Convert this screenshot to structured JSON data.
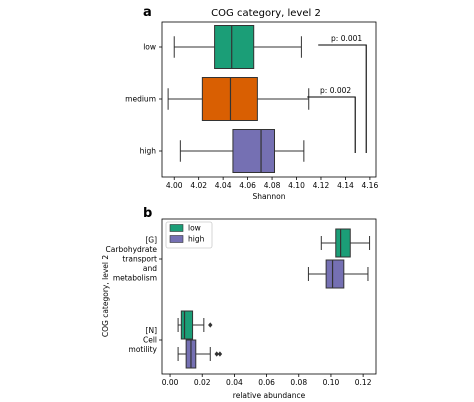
{
  "chart_data": [
    {
      "panel": "a",
      "type": "box",
      "orientation": "horizontal",
      "title": "COG category, level 2",
      "xlabel": "Shannon",
      "ylabel": "",
      "xlim": [
        3.99,
        4.165
      ],
      "xticks": [
        "4.00",
        "4.02",
        "4.04",
        "4.06",
        "4.08",
        "4.10",
        "4.12",
        "4.14",
        "4.16"
      ],
      "categories": [
        "low",
        "medium",
        "high"
      ],
      "boxes": [
        {
          "category": "low",
          "color": "#1b9e77",
          "whisker_low": 4.0,
          "q1": 4.033,
          "median": 4.047,
          "q3": 4.065,
          "whisker_high": 4.104
        },
        {
          "category": "medium",
          "color": "#d95f02",
          "whisker_low": 3.995,
          "q1": 4.023,
          "median": 4.046,
          "q3": 4.068,
          "whisker_high": 4.11
        },
        {
          "category": "high",
          "color": "#7570b3",
          "whisker_low": 4.005,
          "q1": 4.048,
          "median": 4.071,
          "q3": 4.082,
          "whisker_high": 4.106
        }
      ],
      "annotations": [
        {
          "text": "p: 0.001",
          "from": "low",
          "to": "high",
          "bracket_x": 4.157
        },
        {
          "text": "p: 0.002",
          "from": "medium",
          "to": "high",
          "bracket_x": 4.148
        }
      ]
    },
    {
      "panel": "b",
      "type": "box",
      "orientation": "horizontal",
      "title": "",
      "xlabel": "relative abundance",
      "ylabel": "COG category, level 2",
      "xlim": [
        -0.005,
        0.128
      ],
      "xticks": [
        "0.00",
        "0.02",
        "0.04",
        "0.06",
        "0.08",
        "0.10",
        "0.12"
      ],
      "categories": [
        {
          "key": "G",
          "lines": [
            "[G]",
            "Carbohydrate",
            "transport",
            "and",
            "metabolism"
          ]
        },
        {
          "key": "N",
          "lines": [
            "[N]",
            "Cell",
            "motility"
          ]
        }
      ],
      "legend": {
        "position": "top-left",
        "entries": [
          {
            "name": "low",
            "color": "#1b9e77"
          },
          {
            "name": "high",
            "color": "#7570b3"
          }
        ]
      },
      "boxes": [
        {
          "category": "G",
          "group": "low",
          "color": "#1b9e77",
          "whisker_low": 0.094,
          "q1": 0.103,
          "median": 0.106,
          "q3": 0.112,
          "whisker_high": 0.124,
          "outliers": []
        },
        {
          "category": "G",
          "group": "high",
          "color": "#7570b3",
          "whisker_low": 0.086,
          "q1": 0.097,
          "median": 0.101,
          "q3": 0.108,
          "whisker_high": 0.123,
          "outliers": []
        },
        {
          "category": "N",
          "group": "low",
          "color": "#1b9e77",
          "whisker_low": 0.005,
          "q1": 0.007,
          "median": 0.009,
          "q3": 0.014,
          "whisker_high": 0.021,
          "outliers": [
            0.025
          ]
        },
        {
          "category": "N",
          "group": "high",
          "color": "#7570b3",
          "whisker_low": 0.005,
          "q1": 0.01,
          "median": 0.013,
          "q3": 0.016,
          "whisker_high": 0.025,
          "outliers": [
            0.029,
            0.031
          ]
        }
      ]
    }
  ]
}
